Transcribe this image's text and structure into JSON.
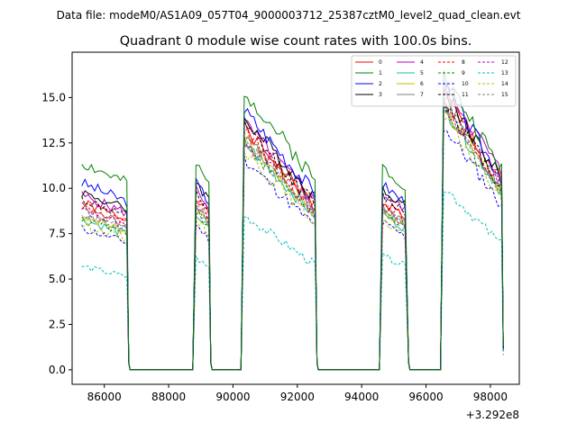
{
  "chart_data": {
    "type": "line",
    "suptitle": "Data file: modeM0/AS1A09_057T04_9000003712_25387cztM0_level2_quad_clean.evt",
    "title": "Quadrant 0 module wise count rates with 100.0s bins.",
    "xlabel": "",
    "ylabel": "",
    "x_offset_text": "+3.292e8",
    "xlim": [
      85000,
      98900
    ],
    "ylim": [
      -0.8,
      17.5
    ],
    "x_ticks": [
      86000,
      88000,
      90000,
      92000,
      94000,
      96000,
      98000
    ],
    "x_tick_labels": [
      "86000",
      "88000",
      "90000",
      "92000",
      "94000",
      "96000",
      "98000"
    ],
    "y_ticks": [
      0,
      2.5,
      5,
      7.5,
      10,
      12.5,
      15
    ],
    "y_tick_labels": [
      "0.0",
      "2.5",
      "5.0",
      "7.5",
      "10.0",
      "12.5",
      "15.0"
    ],
    "grid": false,
    "legend_position": "top-right",
    "segments": [
      {
        "start": 85300,
        "end": 86700
      },
      {
        "start": 88850,
        "end": 89250
      },
      {
        "start": 90350,
        "end": 92550
      },
      {
        "start": 94650,
        "end": 95400
      },
      {
        "start": 96550,
        "end": 98350
      }
    ],
    "gaps": [
      {
        "from": 86700,
        "to": 88850
      },
      {
        "from": 89250,
        "to": 90350
      },
      {
        "from": 92550,
        "to": 94650
      },
      {
        "from": 95400,
        "to": 96550
      }
    ],
    "bin_width": 100,
    "series": [
      {
        "name": "0",
        "color": "#ff0000",
        "dash": "solid",
        "levels": [
          9.2,
          9.6,
          13.3,
          9.3,
          15.2
        ]
      },
      {
        "name": "1",
        "color": "#008000",
        "dash": "solid",
        "levels": [
          11.4,
          11.3,
          15.4,
          11.2,
          16.2
        ]
      },
      {
        "name": "2",
        "color": "#0000ff",
        "dash": "solid",
        "levels": [
          10.3,
          10.3,
          14.3,
          10.2,
          15.6
        ]
      },
      {
        "name": "3",
        "color": "#000000",
        "dash": "solid",
        "levels": [
          9.8,
          10.4,
          13.9,
          10.0,
          15.4
        ]
      },
      {
        "name": "4",
        "color": "#bf00bf",
        "dash": "solid",
        "levels": [
          9.6,
          10.0,
          13.6,
          9.7,
          15.9
        ]
      },
      {
        "name": "5",
        "color": "#1abc9c",
        "dash": "solid",
        "levels": [
          8.3,
          8.6,
          12.5,
          8.6,
          14.5
        ]
      },
      {
        "name": "6",
        "color": "#bfbf00",
        "dash": "solid",
        "levels": [
          8.5,
          9.0,
          12.7,
          8.7,
          14.6
        ]
      },
      {
        "name": "7",
        "color": "#808080",
        "dash": "solid",
        "levels": [
          8.9,
          9.2,
          13.0,
          9.0,
          15.0
        ]
      },
      {
        "name": "8",
        "color": "#ff0000",
        "dash": "dashed",
        "levels": [
          9.0,
          9.3,
          13.1,
          9.2,
          14.9
        ]
      },
      {
        "name": "9",
        "color": "#008000",
        "dash": "dashed",
        "levels": [
          8.4,
          8.8,
          12.5,
          8.7,
          14.3
        ]
      },
      {
        "name": "10",
        "color": "#0000ff",
        "dash": "dashed",
        "levels": [
          7.8,
          8.0,
          11.6,
          8.1,
          13.4
        ]
      },
      {
        "name": "11",
        "color": "#000000",
        "dash": "dashed",
        "levels": [
          9.4,
          9.7,
          13.4,
          9.6,
          14.8
        ]
      },
      {
        "name": "12",
        "color": "#bf00bf",
        "dash": "dashed",
        "levels": [
          8.8,
          9.1,
          12.7,
          8.9,
          14.6
        ]
      },
      {
        "name": "13",
        "color": "#00bfbf",
        "dash": "dashed",
        "levels": [
          5.7,
          6.2,
          8.5,
          6.3,
          10.1
        ]
      },
      {
        "name": "14",
        "color": "#bfbf00",
        "dash": "dashed",
        "levels": [
          8.0,
          8.4,
          12.0,
          8.2,
          13.9
        ]
      },
      {
        "name": "15",
        "color": "#808080",
        "dash": "dashed",
        "levels": [
          8.6,
          9.0,
          12.6,
          8.8,
          14.5
        ]
      }
    ]
  }
}
